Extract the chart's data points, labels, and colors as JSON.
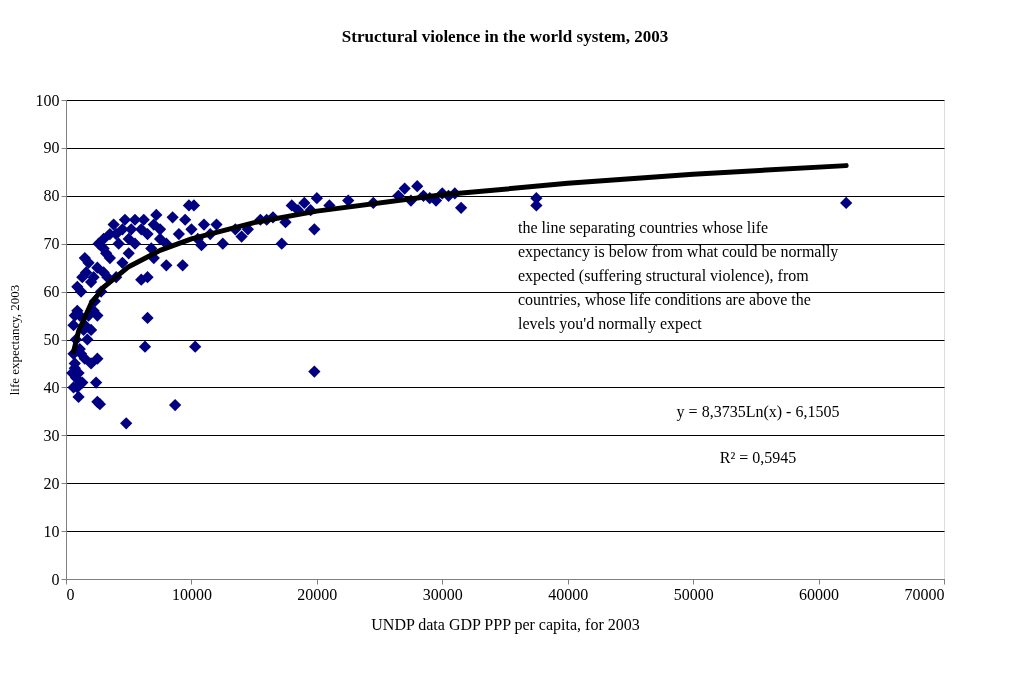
{
  "chart_data": {
    "type": "scatter",
    "title": "Structural violence in the world system, 2003",
    "xlabel": "UNDP data GDP PPP per capita, for 2003",
    "ylabel": "life expectancy, 2003",
    "xlim": [
      0,
      70000
    ],
    "xticks": [
      0,
      10000,
      20000,
      30000,
      40000,
      50000,
      60000,
      70000
    ],
    "ylim": [
      0,
      100
    ],
    "yticks": [
      0,
      10,
      20,
      30,
      40,
      50,
      60,
      70,
      80,
      90,
      100
    ],
    "grid": "y",
    "marker": "diamond",
    "series": [
      {
        "color": "#000080",
        "x": [
          600,
          700,
          800,
          900,
          1000,
          700,
          1200,
          1500,
          2000,
          2500,
          1000,
          800,
          1100,
          600,
          900,
          1300,
          1600,
          2000,
          2200,
          1500,
          1800,
          2500,
          2600,
          3000,
          3200,
          3500,
          3800,
          4000,
          4500,
          5000,
          5500,
          6000,
          6500,
          7000,
          7500,
          2200,
          2500,
          2000,
          1500,
          1800,
          2400,
          2500,
          2700,
          4800,
          6300,
          6500,
          8700,
          10300,
          19800,
          3000,
          3500,
          4000,
          4500,
          5000,
          5500,
          6000,
          6500,
          7000,
          7500,
          8000,
          9300,
          8500,
          9500,
          9800,
          10200,
          10000,
          10500,
          11000,
          11500,
          12000,
          12500,
          13500,
          14000,
          14500,
          15500,
          16500,
          17200,
          17500,
          18000,
          19000,
          19500,
          20000,
          19800,
          22500,
          24500,
          26500,
          27000,
          27500,
          28000,
          28500,
          29500,
          30000,
          30500,
          31000,
          31500,
          29000,
          37500,
          37500,
          62200,
          16000,
          18500,
          21000,
          8000,
          9000,
          2800,
          3300,
          1200,
          700,
          900,
          1400,
          1100,
          1300,
          500,
          600,
          1700,
          2300,
          10800,
          3000,
          4200,
          5200,
          6200,
          7200,
          4700,
          6800
        ],
        "values": [
          47,
          44,
          42,
          40,
          38,
          45,
          47,
          46,
          45,
          46,
          43,
          50,
          55,
          53,
          61,
          63,
          64,
          62,
          63,
          67,
          66,
          65,
          70,
          69,
          68,
          72,
          74,
          72,
          73,
          71,
          75,
          73,
          72,
          74,
          73,
          56,
          55,
          52,
          53,
          55,
          41,
          37,
          36.5,
          32.5,
          48.5,
          54.5,
          36.3,
          48.5,
          43.3,
          64,
          67,
          63,
          66,
          68,
          70,
          62.5,
          63,
          67,
          71,
          65.5,
          65.5,
          75.5,
          75,
          78,
          78,
          73,
          71,
          74,
          72,
          74,
          70,
          73,
          71.5,
          73,
          75,
          75.5,
          70,
          74.5,
          78,
          78.5,
          77,
          79.5,
          73,
          79,
          78.5,
          80,
          81.5,
          79,
          82,
          80,
          79,
          80.5,
          80,
          80.5,
          77.5,
          79.5,
          79.5,
          78,
          78.5,
          75,
          77,
          78,
          70,
          72,
          60,
          63,
          60,
          55,
          56,
          52,
          48,
          41,
          43,
          40,
          50,
          58,
          69.7,
          71,
          70,
          73,
          75,
          76,
          75,
          69
        ]
      },
      {
        "type": "line",
        "color": "#000000",
        "marker": "none",
        "line_style": "solid",
        "x": [
          600,
          1000,
          2000,
          3000,
          5000,
          7500,
          10000,
          15000,
          20000,
          30000,
          40000,
          50000,
          62200
        ],
        "values": [
          47.4,
          51.7,
          57.5,
          60.9,
          65.2,
          68.6,
          71.0,
          74.4,
          76.8,
          80.2,
          82.6,
          84.5,
          86.3
        ]
      }
    ],
    "annotations": [
      {
        "text": "the line separating countries whose life expectancy is below from what could be normally expected (suffering structural violence), from countries, whose life conditions are above the levels you'd normally expect"
      },
      "y = 8,3735Ln(x) - 6,1505",
      "R² = 0,5945"
    ]
  }
}
